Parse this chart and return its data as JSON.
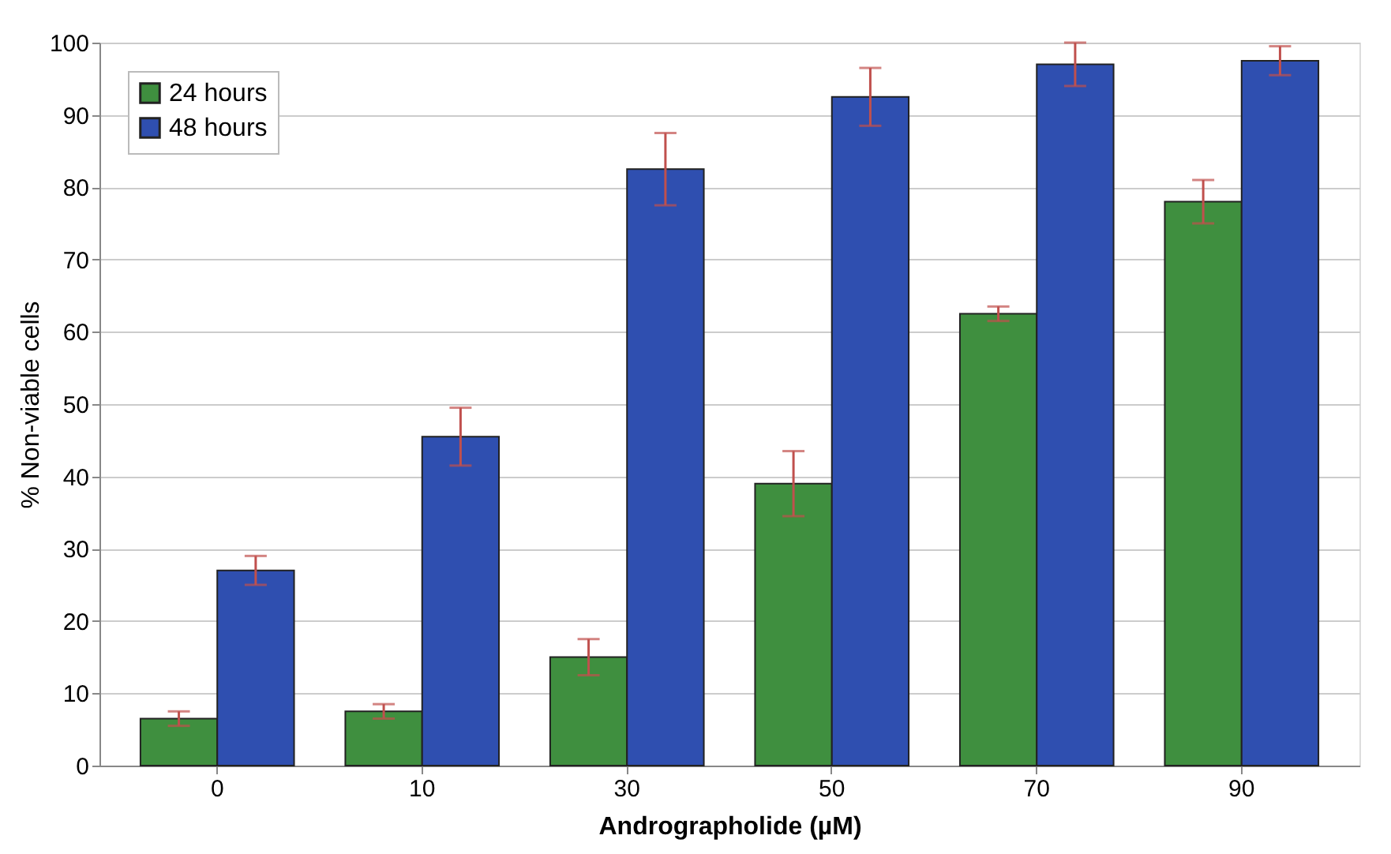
{
  "chart_data": {
    "type": "bar",
    "xlabel": "Andrographolide (µM)",
    "ylabel": "% Non-viable cells",
    "categories": [
      "0",
      "10",
      "30",
      "50",
      "70",
      "90"
    ],
    "series": [
      {
        "name": "24 hours",
        "color": "#3f8f3f",
        "values": [
          6.5,
          7.5,
          15,
          39,
          62.5,
          78
        ],
        "errors": [
          1,
          1,
          2.5,
          4.5,
          1,
          3
        ]
      },
      {
        "name": "48 hours",
        "color": "#2f4fb0",
        "values": [
          27,
          45.5,
          82.5,
          92.5,
          97,
          97.5
        ],
        "errors": [
          2,
          4,
          5,
          4,
          3,
          2
        ]
      }
    ],
    "ylim": [
      0,
      100
    ],
    "yticks": [
      0,
      10,
      20,
      30,
      40,
      50,
      60,
      70,
      80,
      90,
      100
    ],
    "grid": "y",
    "legend": "top left"
  }
}
